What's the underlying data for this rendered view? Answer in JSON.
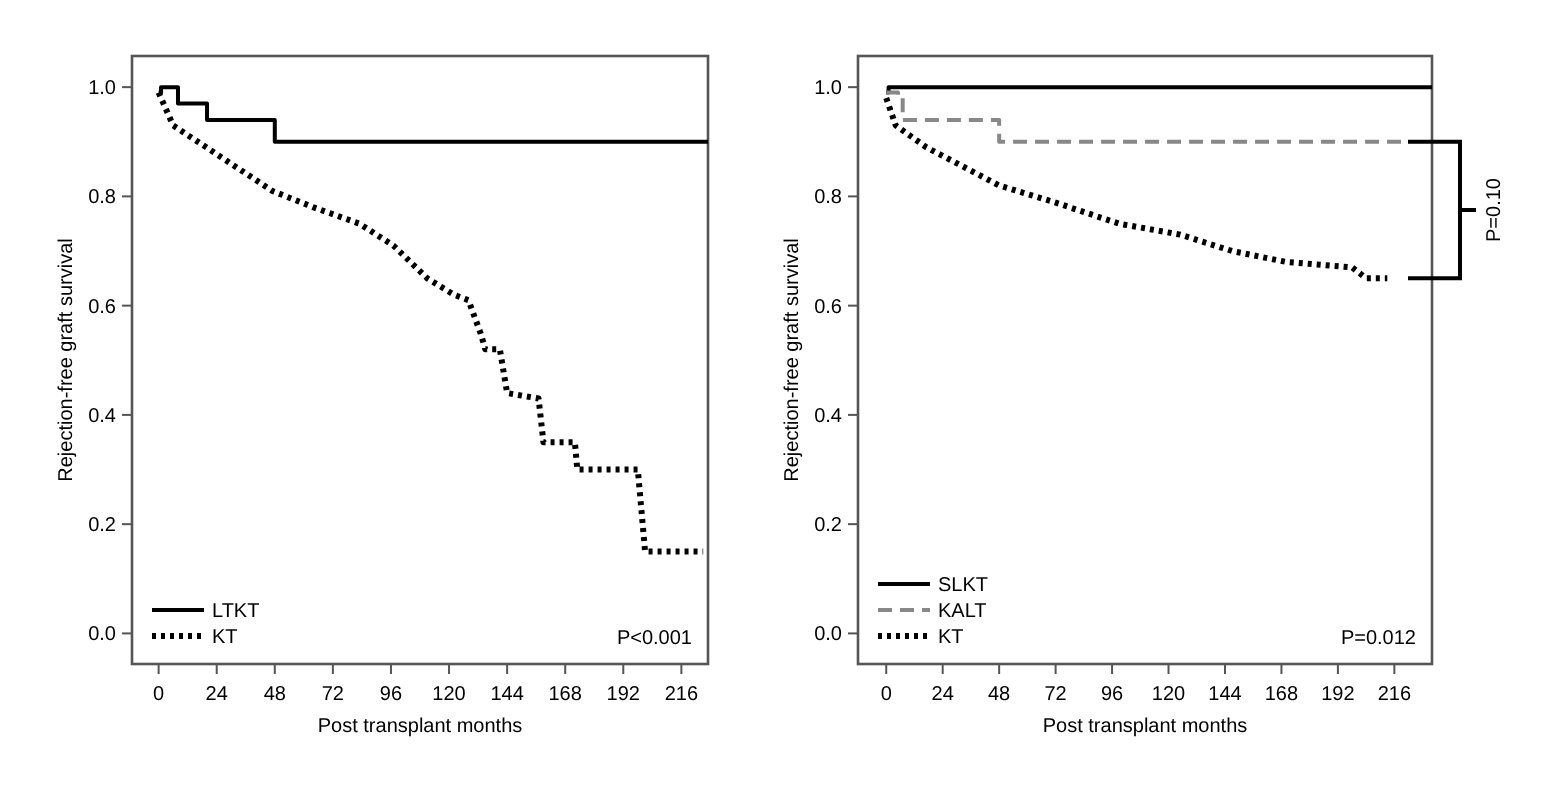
{
  "chart_data": [
    {
      "type": "line",
      "xlabel": "Post transplant months",
      "ylabel": "Rejection-free graft survival",
      "xlim": [
        -11,
        227
      ],
      "ylim": [
        -0.056,
        1.057
      ],
      "xticks": [
        0,
        24,
        48,
        72,
        96,
        120,
        144,
        168,
        192,
        216
      ],
      "yticks": [
        {
          "value": 0,
          "label": "0.0"
        },
        {
          "value": 0.2,
          "label": "0.2"
        },
        {
          "value": 0.4,
          "label": "0.4"
        },
        {
          "value": 0.6,
          "label": "0.6"
        },
        {
          "value": 0.8,
          "label": "0.8"
        },
        {
          "value": 1,
          "label": "1.0"
        }
      ],
      "grid": false,
      "legend": "bottom left",
      "annotations": [
        "P<0.001"
      ],
      "series": [
        {
          "name": "LTKT",
          "type": "step",
          "color": "#000000",
          "line_style": "solid",
          "x": [
            0,
            1,
            8,
            20,
            48,
            227
          ],
          "values": [
            0.99,
            1.0,
            0.97,
            0.94,
            0.9,
            0.9
          ]
        },
        {
          "name": "KT",
          "type": "line",
          "color": "#000000",
          "line_style": "dotted",
          "x": [
            0,
            6,
            23,
            47,
            64,
            83,
            97,
            111,
            122,
            128,
            133,
            135,
            141,
            144,
            157,
            159,
            172,
            173,
            198,
            201,
            225
          ],
          "values": [
            0.99,
            0.93,
            0.88,
            0.81,
            0.78,
            0.75,
            0.71,
            0.65,
            0.62,
            0.61,
            0.55,
            0.52,
            0.52,
            0.44,
            0.43,
            0.35,
            0.35,
            0.3,
            0.3,
            0.15,
            0.15
          ]
        }
      ]
    },
    {
      "type": "line",
      "xlabel": "Post transplant months",
      "ylabel": "Rejection-free graft survival",
      "xlim": [
        -12,
        232
      ],
      "ylim": [
        -0.056,
        1.057
      ],
      "xticks": [
        0,
        24,
        48,
        72,
        96,
        120,
        144,
        168,
        192,
        216
      ],
      "yticks": [
        {
          "value": 0,
          "label": "0.0"
        },
        {
          "value": 0.2,
          "label": "0.2"
        },
        {
          "value": 0.4,
          "label": "0.4"
        },
        {
          "value": 0.6,
          "label": "0.6"
        },
        {
          "value": 0.8,
          "label": "0.8"
        },
        {
          "value": 1,
          "label": "1.0"
        }
      ],
      "grid": false,
      "legend": "bottom left",
      "annotations": [
        "P=0.012",
        "P=0.10"
      ],
      "series": [
        {
          "name": "SLKT",
          "type": "step",
          "color": "#000000",
          "line_style": "solid",
          "x": [
            0,
            1,
            232
          ],
          "values": [
            0.99,
            1.0,
            1.0
          ]
        },
        {
          "name": "KALT",
          "type": "step",
          "color": "#888888",
          "line_style": "dashed",
          "x": [
            0,
            5,
            7,
            48,
            220
          ],
          "values": [
            0.99,
            0.98,
            0.94,
            0.9,
            0.9
          ]
        },
        {
          "name": "KT",
          "type": "line",
          "color": "#000000",
          "line_style": "dotted",
          "x": [
            0,
            4,
            17,
            48,
            71,
            99,
            125,
            147,
            170,
            198,
            204,
            213
          ],
          "values": [
            0.98,
            0.93,
            0.89,
            0.82,
            0.79,
            0.75,
            0.73,
            0.7,
            0.68,
            0.67,
            0.65,
            0.65
          ]
        }
      ]
    }
  ]
}
